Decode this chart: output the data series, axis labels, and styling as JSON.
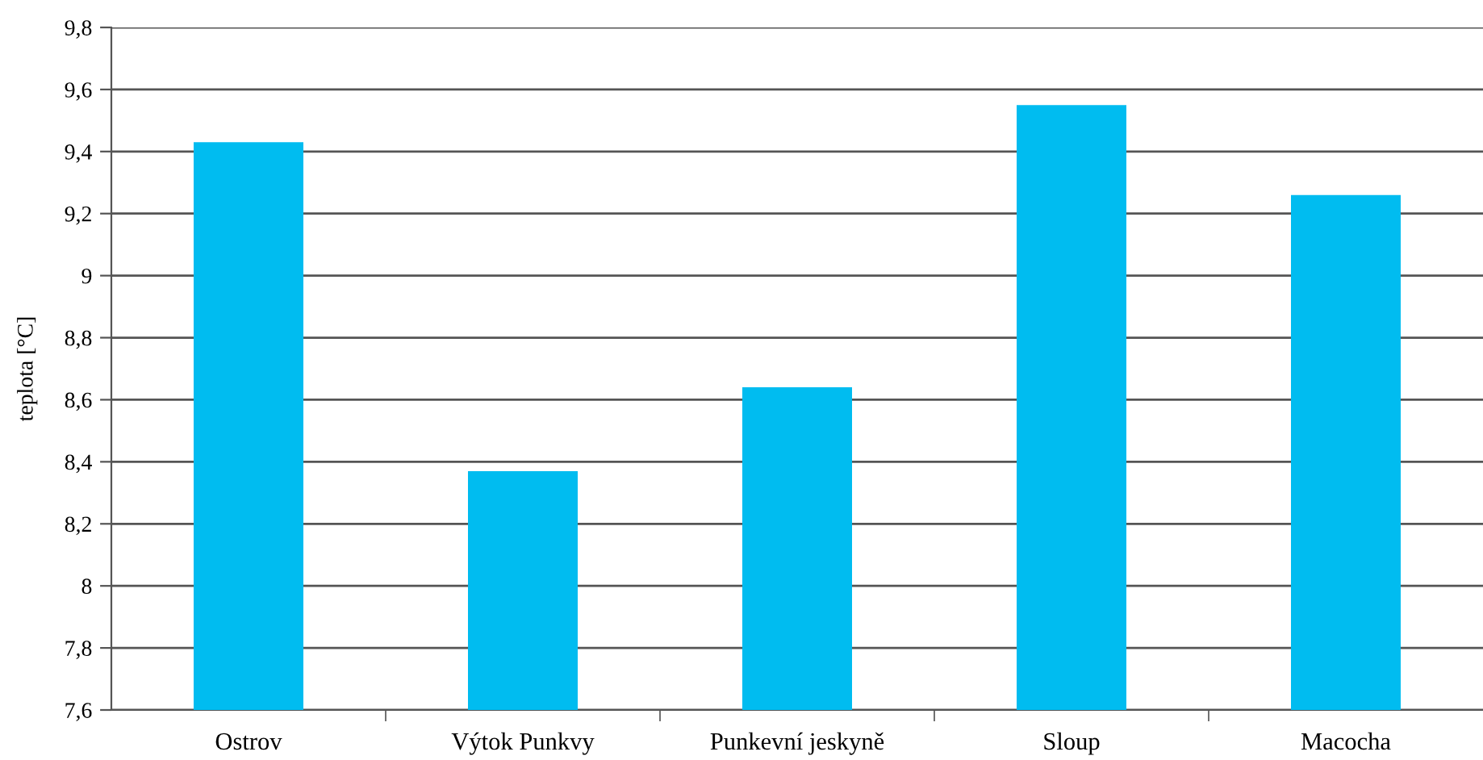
{
  "chart_data": {
    "type": "bar",
    "ylabel": "teplota [°C]",
    "categories": [
      "Ostrov",
      "Výtok Punkvy",
      "Punkevní jeskyně",
      "Sloup",
      "Macocha"
    ],
    "values": [
      9.43,
      8.37,
      8.64,
      9.55,
      9.26
    ],
    "color": "#00bcf0",
    "ylim": [
      7.6,
      9.8
    ],
    "yticks": [
      {
        "value": 7.6,
        "label": "7,6"
      },
      {
        "value": 7.8,
        "label": "7,8"
      },
      8,
      {
        "value": 8.2,
        "label": "8,2"
      },
      {
        "value": 8.4,
        "label": "8,4"
      },
      {
        "value": 8.6,
        "label": "8,6"
      },
      {
        "value": 8.8,
        "label": "8,8"
      },
      9,
      {
        "value": 9.2,
        "label": "9,2"
      },
      {
        "value": 9.4,
        "label": "9,4"
      },
      {
        "value": 9.6,
        "label": "9,6"
      },
      {
        "value": 9.8,
        "label": "9,8"
      }
    ],
    "grid": "y"
  }
}
